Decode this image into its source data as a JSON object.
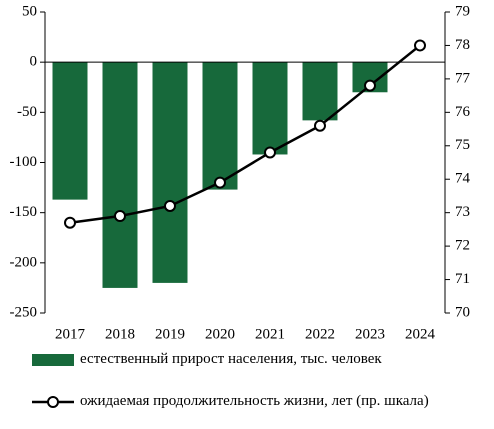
{
  "chart_data": {
    "type": "bar_line",
    "categories": [
      "2017",
      "2018",
      "2019",
      "2020",
      "2021",
      "2022",
      "2023",
      "2024"
    ],
    "series": [
      {
        "name": "естественный прирост населения, тыс. человек",
        "type": "bar",
        "color": "#17693b",
        "values": [
          -137,
          -225,
          -220,
          -127,
          -92,
          -58,
          -30,
          null
        ]
      },
      {
        "name": "ожидаемая продолжительность жизни, лет (пр. шкала)",
        "type": "line",
        "axis": "y2",
        "color": "#000000",
        "values": [
          72.7,
          72.9,
          73.2,
          73.9,
          74.8,
          75.6,
          76.8,
          78.0
        ]
      }
    ],
    "ylim": [
      -250,
      50
    ],
    "yticks": [
      50,
      0,
      -50,
      -100,
      -150,
      -200,
      -250
    ],
    "y2lim": [
      70,
      79
    ],
    "y2ticks": [
      70,
      71,
      72,
      73,
      74,
      75,
      76,
      77,
      78,
      79
    ],
    "grid": false
  }
}
